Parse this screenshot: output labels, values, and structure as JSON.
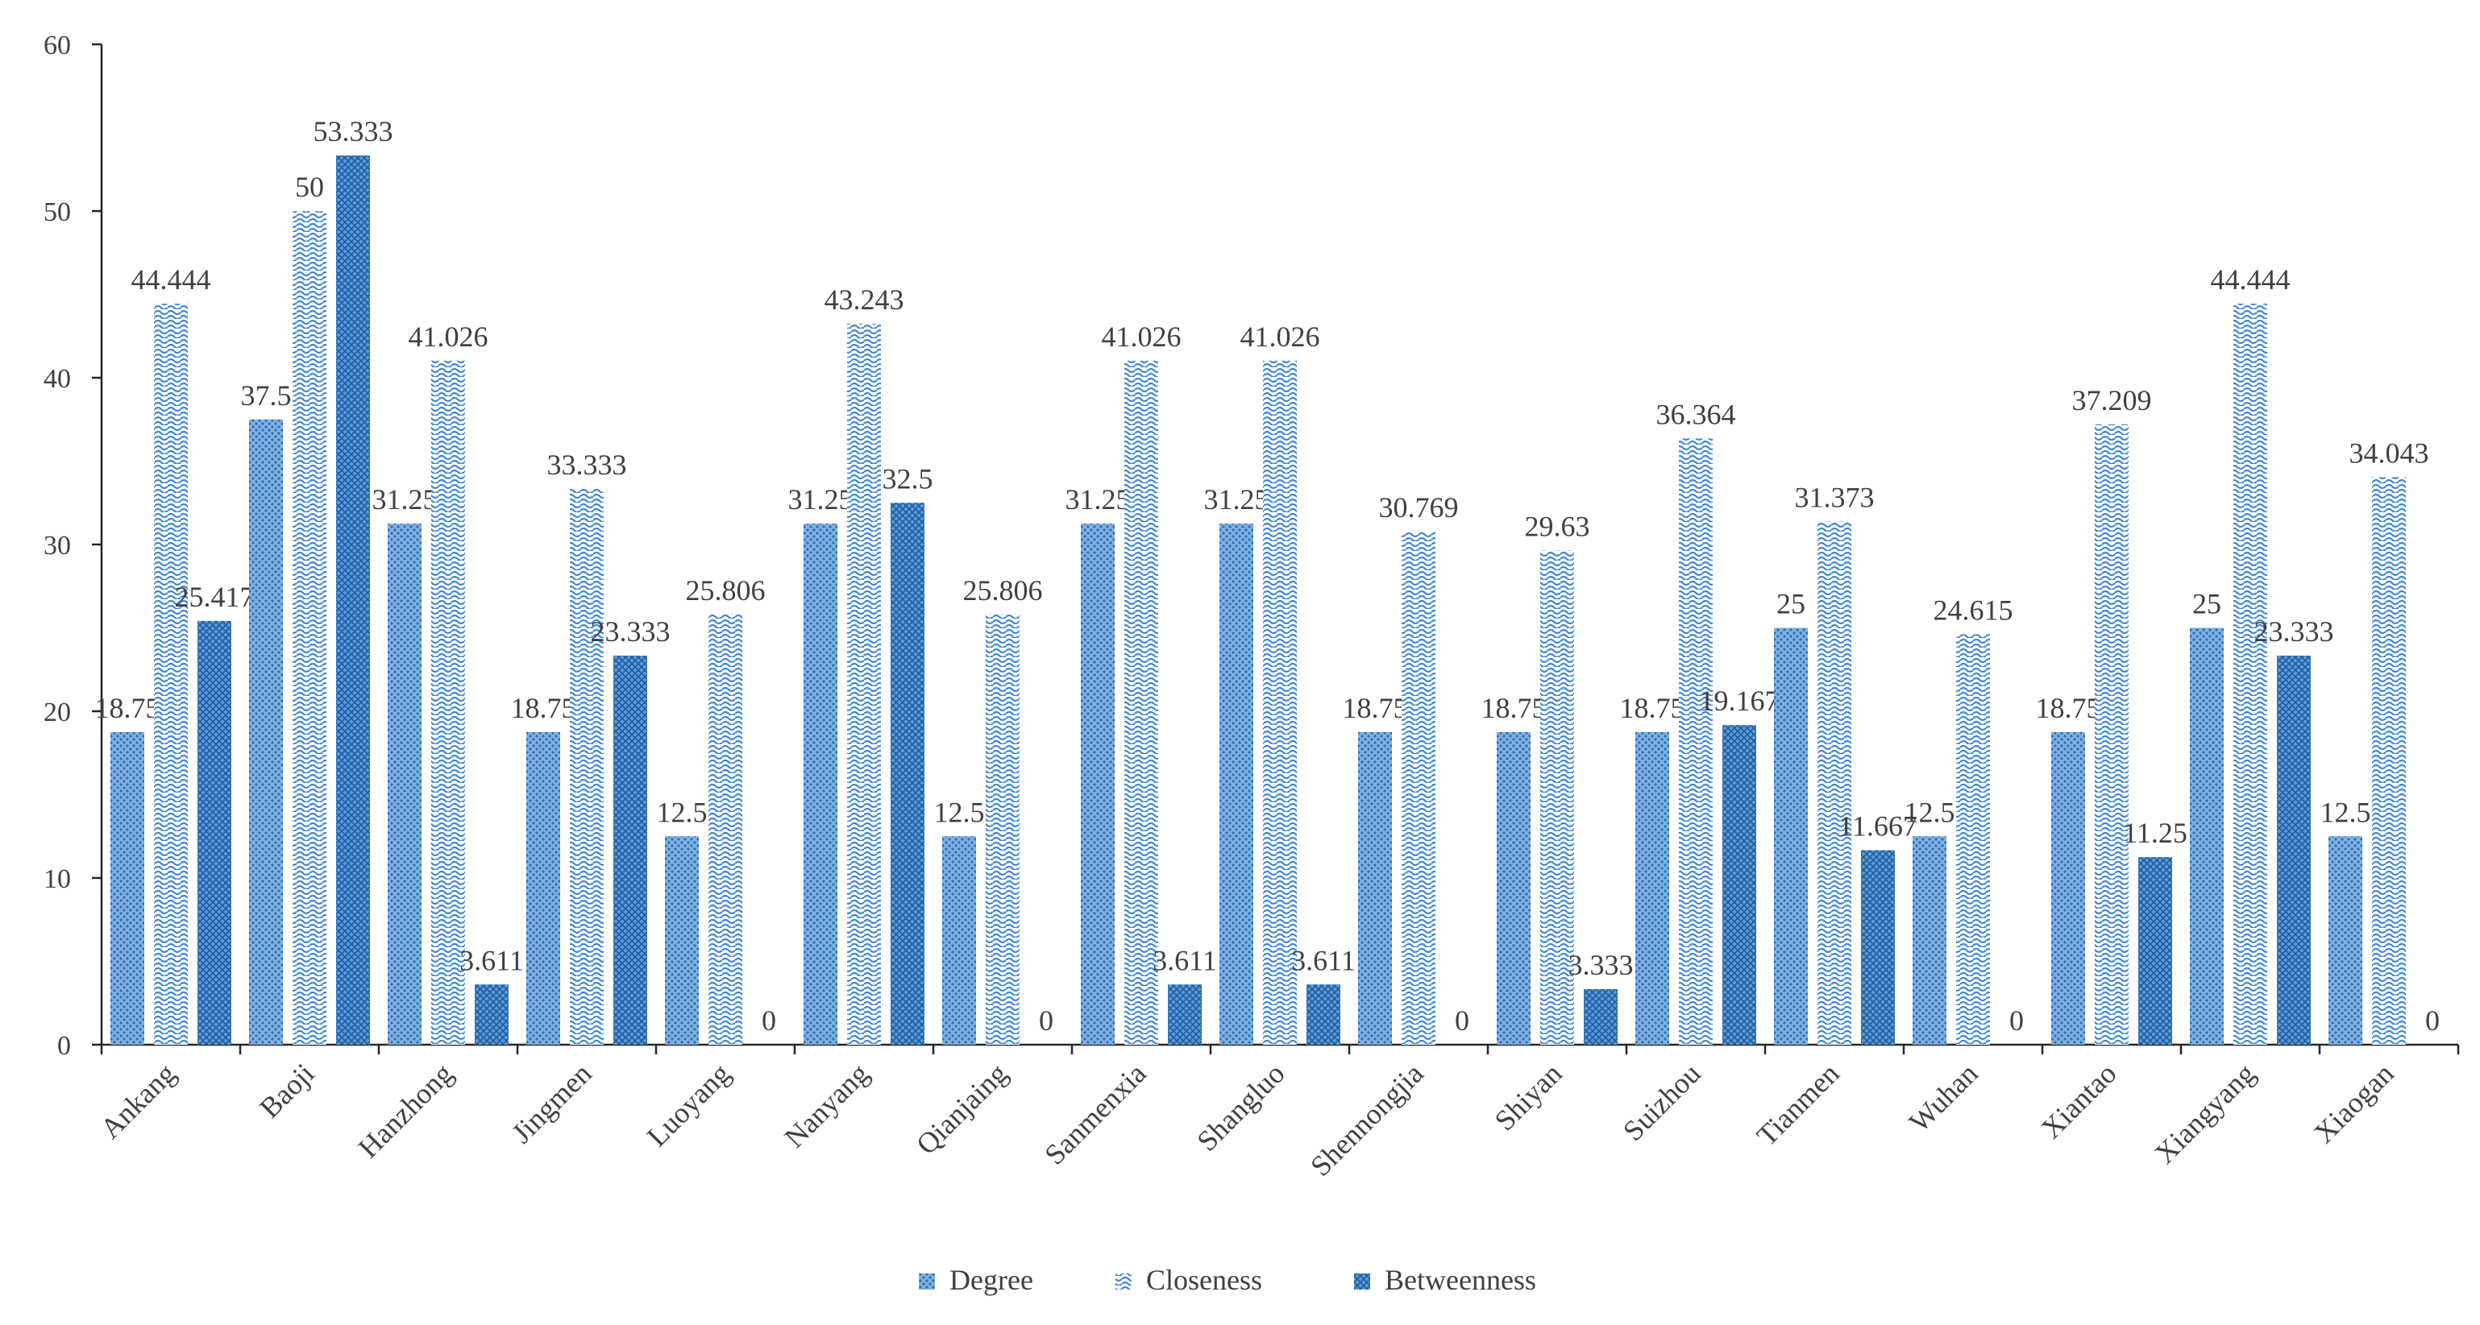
{
  "chart_data": {
    "type": "bar",
    "title": "",
    "xlabel": "",
    "ylabel": "",
    "ylim": [
      0,
      60
    ],
    "yticks": [
      0,
      10,
      20,
      30,
      40,
      50,
      60
    ],
    "grid": false,
    "legend_position": "bottom",
    "categories": [
      "Ankang",
      "Baoji",
      "Hanzhong",
      "Jingmen",
      "Luoyang",
      "Nanyang",
      "Qianjaing",
      "Sanmenxia",
      "Shangluo",
      "Shennongjia",
      "Shiyan",
      "Suizhou",
      "Tianmen",
      "Wuhan",
      "Xiantao",
      "Xiangyang",
      "Xiaogan"
    ],
    "series": [
      {
        "name": "Degree",
        "values": [
          18.75,
          37.5,
          31.25,
          18.75,
          12.5,
          31.25,
          12.5,
          31.25,
          31.25,
          18.75,
          18.75,
          18.75,
          25,
          12.5,
          18.75,
          25,
          12.5
        ],
        "labels": [
          "18.75",
          "37.5",
          "31.25",
          "18.75",
          "12.5",
          "31.25",
          "12.5",
          "31.25",
          "31.25",
          "18.75",
          "18.75",
          "18.75",
          "25",
          "12.5",
          "18.75",
          "25",
          "12.5"
        ]
      },
      {
        "name": "Closeness",
        "values": [
          44.444,
          50,
          41.026,
          33.333,
          25.806,
          43.243,
          25.806,
          41.026,
          41.026,
          30.769,
          29.63,
          36.364,
          31.373,
          24.615,
          37.209,
          44.444,
          34.043
        ],
        "labels": [
          "44.444",
          "50",
          "41.026",
          "33.333",
          "25.806",
          "43.243",
          "25.806",
          "41.026",
          "41.026",
          "30.769",
          "29.63",
          "36.364",
          "31.373",
          "24.615",
          "37.209",
          "44.444",
          "34.043"
        ]
      },
      {
        "name": "Betweenness",
        "values": [
          25.417,
          53.333,
          3.611,
          23.333,
          0,
          32.5,
          0,
          3.611,
          3.611,
          0,
          3.333,
          19.167,
          11.667,
          0,
          11.25,
          23.333,
          0
        ],
        "labels": [
          "25.417",
          "53.333",
          "3.611",
          "23.333",
          "0",
          "32.5",
          "0",
          "3.611",
          "3.611",
          "0",
          "3.333",
          "19.167",
          "11.667",
          "0",
          "11.25",
          "23.333",
          "0"
        ]
      }
    ],
    "colors": {
      "degree": "#4a86c5",
      "closeness": "#4f92d6",
      "betweenness": "#2c6fb5",
      "axis": "#262626",
      "text": "#404040"
    }
  }
}
